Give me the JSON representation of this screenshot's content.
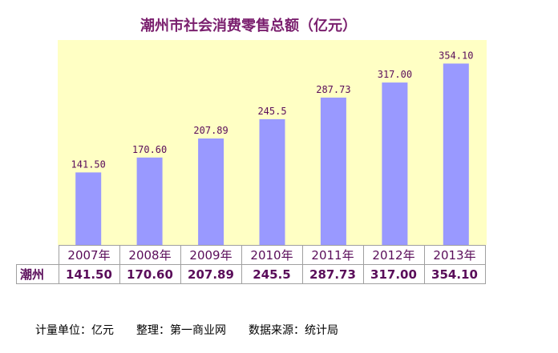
{
  "chart_data": {
    "type": "bar",
    "title": "潮州市社会消费零售总额（亿元）",
    "categories": [
      "2007年",
      "2008年",
      "2009年",
      "2010年",
      "2011年",
      "2012年",
      "2013年"
    ],
    "data_labels": [
      "141.50",
      "170.60",
      "207.89",
      "245.5",
      "287.73",
      "317.00",
      "354.10"
    ],
    "series": [
      {
        "name": "潮州",
        "values": [
          141.5,
          170.6,
          207.89,
          245.5,
          287.73,
          317.0,
          354.1
        ]
      }
    ],
    "table_values": [
      "141.50",
      "170.60",
      "207.89",
      "245.5",
      "287.73",
      "317.00",
      "354.10"
    ],
    "ylim": [
      0,
      400
    ],
    "grid": false,
    "legend": "data-table",
    "colors": {
      "bar": "#9999ff",
      "plot_bg": "#ffffc4",
      "text": "#5a0d5a",
      "title": "#7a1f6e"
    }
  },
  "footer": {
    "unit": "计量单位：亿元",
    "editor": "整理：第一商业网",
    "source": "数据来源：统计局"
  }
}
